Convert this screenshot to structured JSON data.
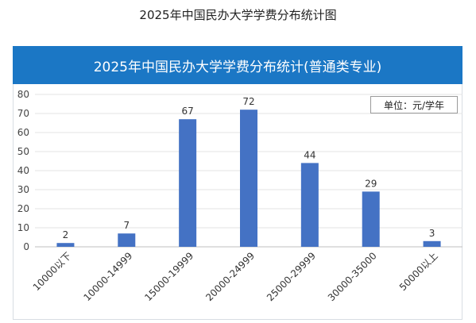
{
  "page_title": "2025年中国民办大学学费分布统计图",
  "colors": {
    "banner": "#1b77c5",
    "bar": "#4472c4",
    "grid": "#e3e3e3"
  },
  "chart_data": {
    "type": "bar",
    "title": "2025年中国民办大学学费分布统计(普通类专业)",
    "unit_label": "单位：元/学年",
    "categories": [
      "10000以下",
      "10000-14999",
      "15000-19999",
      "20000-24999",
      "25000-29999",
      "30000-35000",
      "50000以上"
    ],
    "values": [
      2,
      7,
      67,
      72,
      44,
      29,
      3
    ],
    "ylim": [
      0,
      80
    ],
    "yticks": [
      0,
      10,
      20,
      30,
      40,
      50,
      60,
      70,
      80
    ],
    "grid": true,
    "data_labels": true
  }
}
